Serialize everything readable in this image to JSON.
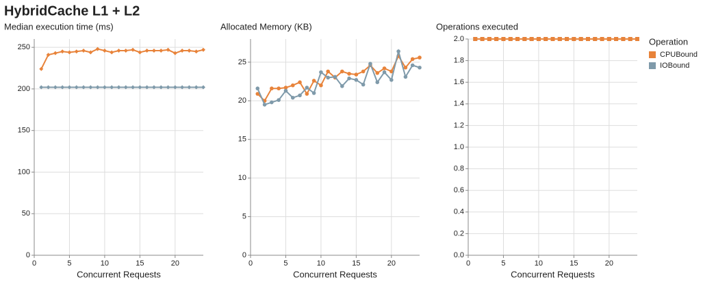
{
  "title": "HybridCache L1 + L2",
  "legend_title": "Operation",
  "chart_data": [
    {
      "type": "line",
      "title": "Median execution time (ms)",
      "x_label": "Concurrent Requests",
      "marker": "diamond",
      "grid": true,
      "x": [
        1,
        2,
        3,
        4,
        5,
        6,
        7,
        8,
        9,
        10,
        11,
        12,
        13,
        14,
        15,
        16,
        17,
        18,
        19,
        20,
        21,
        22,
        23,
        24
      ],
      "xlim": [
        0,
        24
      ],
      "xticks": [
        0,
        5,
        10,
        15,
        20
      ],
      "ylim": [
        0,
        260
      ],
      "yticks": [
        0,
        50,
        100,
        150,
        200,
        250
      ],
      "series": [
        {
          "name": "CPUBound",
          "color": "#e8833a",
          "values": [
            224,
            241,
            243,
            245,
            244,
            245,
            246,
            244,
            248,
            246,
            244,
            246,
            246,
            247,
            244,
            246,
            246,
            246,
            247,
            243,
            246,
            246,
            245,
            247
          ]
        },
        {
          "name": "IOBound",
          "color": "#7f9aaa",
          "values": [
            202,
            202,
            202,
            202,
            202,
            202,
            202,
            202,
            202,
            202,
            202,
            202,
            202,
            202,
            202,
            202,
            202,
            202,
            202,
            202,
            202,
            202,
            202,
            202
          ]
        }
      ]
    },
    {
      "type": "line",
      "title": "Allocated Memory (KB)",
      "x_label": "Concurrent Requests",
      "marker": "circle",
      "grid": true,
      "x": [
        1,
        2,
        3,
        4,
        5,
        6,
        7,
        8,
        9,
        10,
        11,
        12,
        13,
        14,
        15,
        16,
        17,
        18,
        19,
        20,
        21,
        22,
        23,
        24
      ],
      "xlim": [
        0,
        24
      ],
      "xticks": [
        0,
        5,
        10,
        15,
        20
      ],
      "ylim": [
        0,
        28
      ],
      "yticks": [
        0,
        5,
        10,
        15,
        20,
        25
      ],
      "series": [
        {
          "name": "CPUBound",
          "color": "#e8833a",
          "values": [
            20.9,
            20.0,
            21.6,
            21.6,
            21.7,
            22.0,
            22.4,
            20.9,
            22.6,
            22.0,
            23.8,
            23.0,
            23.8,
            23.5,
            23.4,
            23.8,
            24.6,
            23.6,
            24.2,
            23.8,
            25.8,
            24.3,
            25.4,
            25.6
          ]
        },
        {
          "name": "IOBound",
          "color": "#7f9aaa",
          "values": [
            21.6,
            19.5,
            19.8,
            20.1,
            21.3,
            20.4,
            20.7,
            21.7,
            21.0,
            23.7,
            23.0,
            23.1,
            21.9,
            22.9,
            22.7,
            22.1,
            24.8,
            22.4,
            23.7,
            22.7,
            26.4,
            23.1,
            24.6,
            24.3
          ]
        }
      ]
    },
    {
      "type": "line",
      "title": "Operations executed",
      "x_label": "Concurrent Requests",
      "marker": "square",
      "grid": true,
      "x": [
        1,
        2,
        3,
        4,
        5,
        6,
        7,
        8,
        9,
        10,
        11,
        12,
        13,
        14,
        15,
        16,
        17,
        18,
        19,
        20,
        21,
        22,
        23,
        24
      ],
      "xlim": [
        0,
        24
      ],
      "xticks": [
        0,
        5,
        10,
        15,
        20
      ],
      "ylim": [
        0,
        2
      ],
      "yticks": [
        {
          "value": 0,
          "label": "0.0"
        },
        {
          "value": 0.2,
          "label": "0.2"
        },
        {
          "value": 0.4,
          "label": "0.4"
        },
        {
          "value": 0.6,
          "label": "0.6"
        },
        {
          "value": 0.8,
          "label": "0.8"
        },
        {
          "value": 1,
          "label": "1.0"
        },
        {
          "value": 1.2,
          "label": "1.2"
        },
        {
          "value": 1.4,
          "label": "1.4"
        },
        {
          "value": 1.6,
          "label": "1.6"
        },
        {
          "value": 1.8,
          "label": "1.8"
        },
        {
          "value": 2,
          "label": "2.0"
        }
      ],
      "series": [
        {
          "name": "IOBound",
          "color": "#7f9aaa",
          "values": [
            2,
            2,
            2,
            2,
            2,
            2,
            2,
            2,
            2,
            2,
            2,
            2,
            2,
            2,
            2,
            2,
            2,
            2,
            2,
            2,
            2,
            2,
            2,
            2
          ]
        },
        {
          "name": "CPUBound",
          "color": "#e8833a",
          "values": [
            2,
            2,
            2,
            2,
            2,
            2,
            2,
            2,
            2,
            2,
            2,
            2,
            2,
            2,
            2,
            2,
            2,
            2,
            2,
            2,
            2,
            2,
            2,
            2
          ]
        }
      ]
    }
  ]
}
